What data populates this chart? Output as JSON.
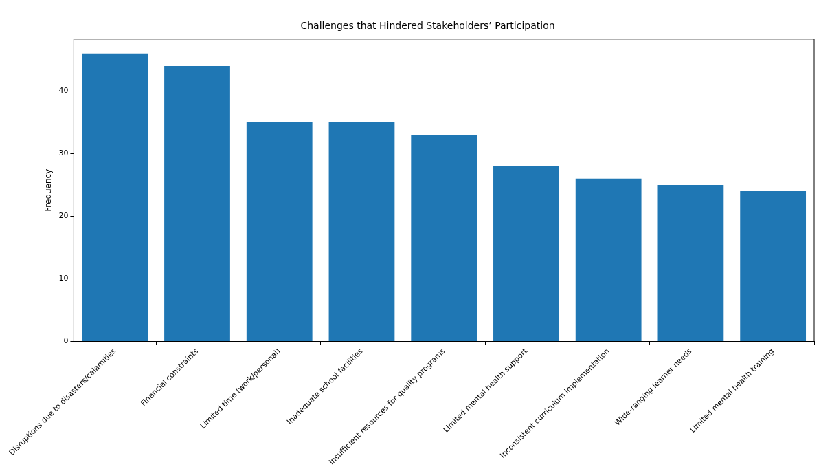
{
  "chart_data": {
    "type": "bar",
    "title": "Challenges that Hindered Stakeholders’ Participation",
    "ylabel": "Frequency",
    "categories": [
      "Disruptions due to disasters/calamities",
      "Financial constraints",
      "Limited time (work/personal)",
      "Inadequate school facilities",
      "Insufficient resources for quality programs",
      "Limited mental health support",
      "Inconsistent curriculum implementation",
      "Wide-ranging learner needs",
      "Limited mental health training"
    ],
    "values": [
      46,
      44,
      35,
      35,
      33,
      28,
      26,
      25,
      24
    ],
    "color": "#1f77b4",
    "ylim": [
      0,
      48.3
    ],
    "yticks": [
      0,
      10,
      20,
      30,
      40
    ],
    "grid": false,
    "legend": false
  }
}
